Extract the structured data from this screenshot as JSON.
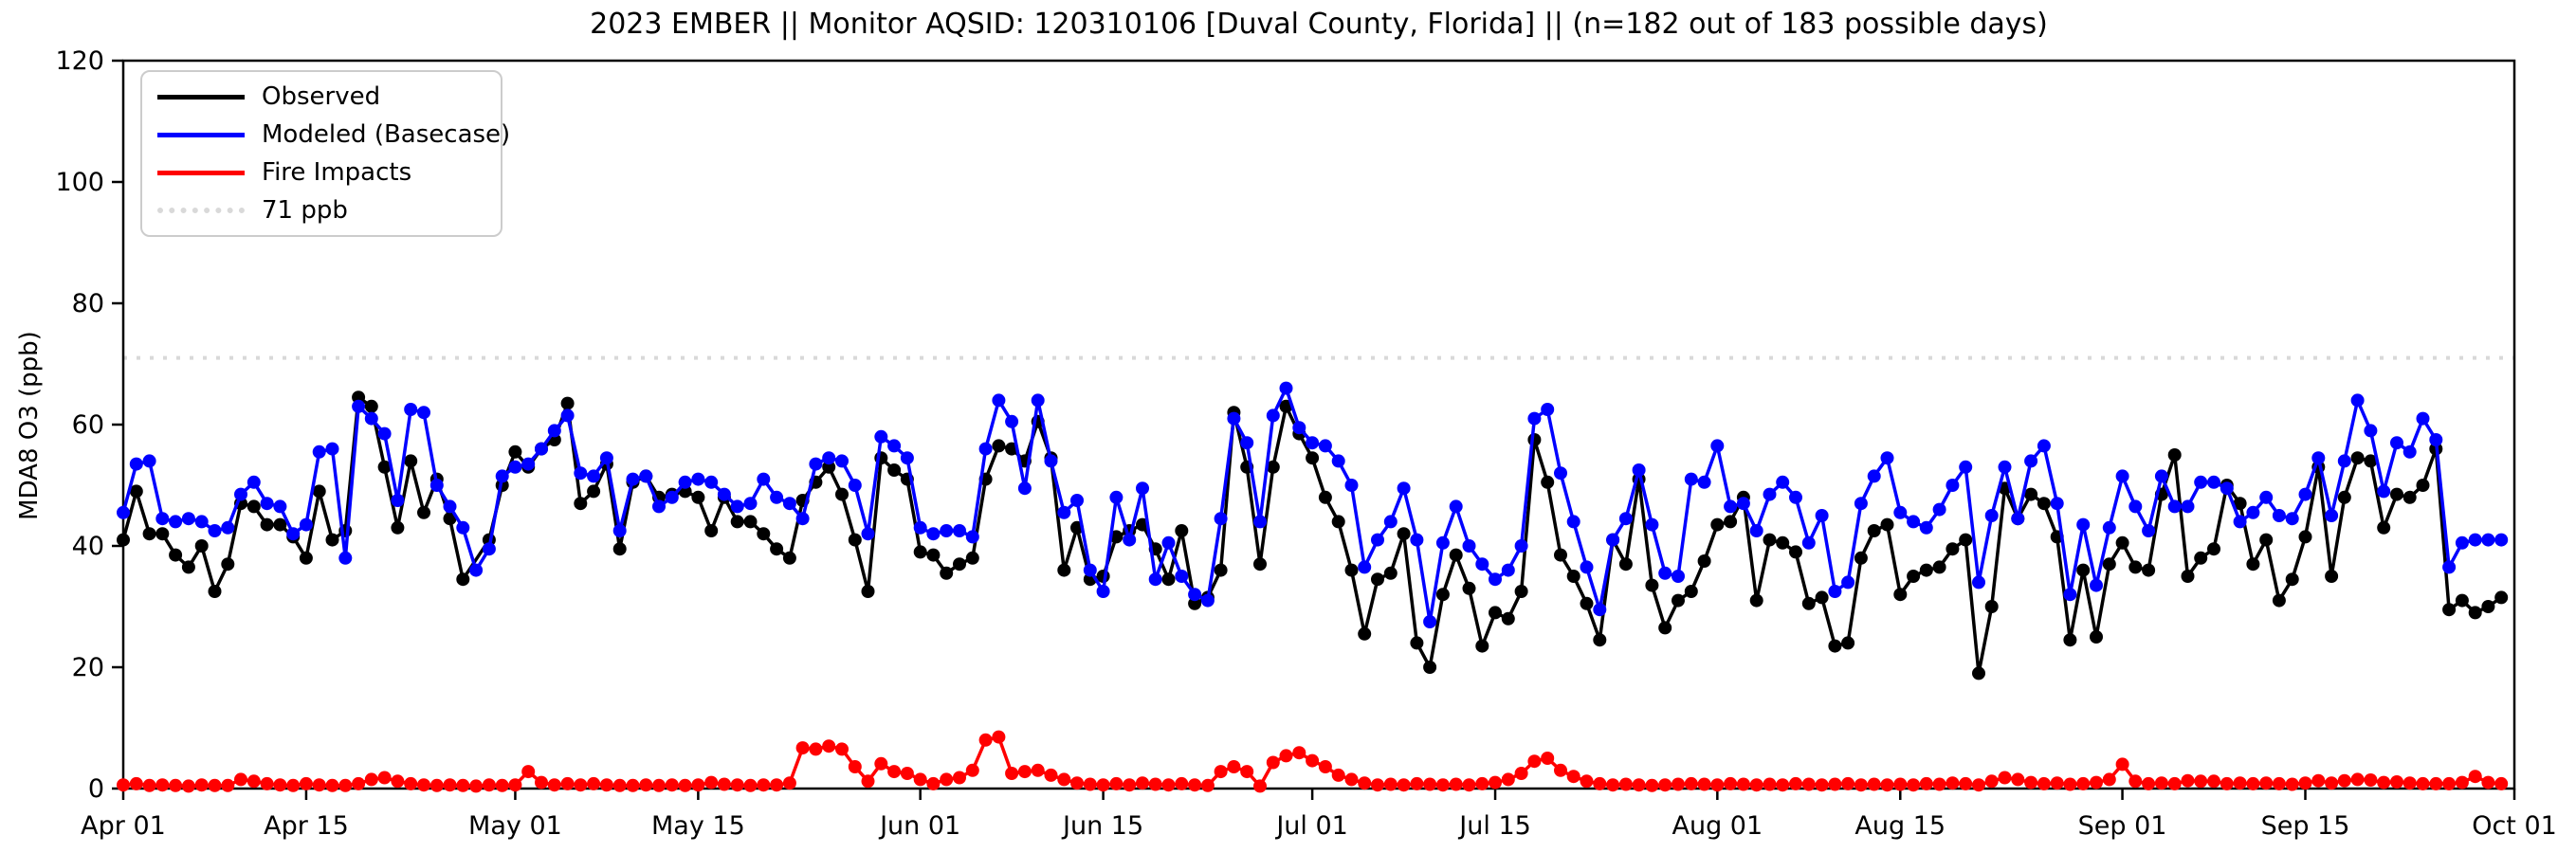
{
  "chart_data": {
    "type": "line",
    "title": "2023 EMBER || Monitor AQSID: 120310106 [Duval County, Florida] || (n=182 out of 183 possible days)",
    "ylabel": "MDA8 O3 (ppb)",
    "xlabel": "",
    "ylim": [
      0,
      120
    ],
    "yticks": [
      0,
      20,
      40,
      60,
      80,
      100,
      120
    ],
    "x_axis_days_total": 183,
    "xticks": [
      {
        "label": "Apr 01",
        "day": 0
      },
      {
        "label": "Apr 15",
        "day": 14
      },
      {
        "label": "May 01",
        "day": 30
      },
      {
        "label": "May 15",
        "day": 44
      },
      {
        "label": "Jun 01",
        "day": 61
      },
      {
        "label": "Jun 15",
        "day": 75
      },
      {
        "label": "Jul 01",
        "day": 91
      },
      {
        "label": "Jul 15",
        "day": 105
      },
      {
        "label": "Aug 01",
        "day": 122
      },
      {
        "label": "Aug 15",
        "day": 136
      },
      {
        "label": "Sep 01",
        "day": 153
      },
      {
        "label": "Sep 15",
        "day": 167
      },
      {
        "label": "Oct 01",
        "day": 183
      }
    ],
    "threshold": {
      "value": 71,
      "label": "71 ppb",
      "color": "#d9d9d9"
    },
    "legend": [
      {
        "label": "Observed",
        "color": "#000000",
        "style": "solid"
      },
      {
        "label": "Modeled (Basecase)",
        "color": "#0000ff",
        "style": "solid"
      },
      {
        "label": "Fire Impacts",
        "color": "#ff0000",
        "style": "solid"
      },
      {
        "label": "71 ppb",
        "color": "#d9d9d9",
        "style": "dotted"
      }
    ],
    "series": [
      {
        "name": "Observed",
        "color": "#000000",
        "values": [
          41,
          49,
          42,
          42,
          38.5,
          36.5,
          40,
          32.5,
          37,
          47,
          46.5,
          43.5,
          43.5,
          41.5,
          38,
          49,
          41,
          42.5,
          64.5,
          63,
          53,
          43,
          54,
          45.5,
          51,
          44.5,
          34.5,
          null,
          41,
          50,
          55.5,
          53,
          56,
          57.5,
          63.5,
          47,
          49,
          53.5,
          39.5,
          50.5,
          51.5,
          48,
          48.5,
          49,
          48,
          42.5,
          48,
          44,
          44,
          42,
          39.5,
          38,
          47.5,
          50.5,
          53,
          48.5,
          41,
          32.5,
          54.5,
          52.5,
          51,
          39,
          38.5,
          35.5,
          37,
          38,
          51,
          56.5,
          56,
          54,
          60.5,
          54.5,
          36,
          43,
          34.5,
          35,
          41.5,
          42.5,
          43.5,
          39.5,
          34.5,
          42.5,
          30.5,
          31.5,
          36,
          62,
          53,
          37,
          53,
          63,
          58.5,
          54.5,
          48,
          44,
          36,
          25.5,
          34.5,
          35.5,
          42,
          24,
          20,
          32,
          38.5,
          33,
          23.5,
          29,
          28,
          32.5,
          57.5,
          50.5,
          38.5,
          35,
          30.5,
          24.5,
          41,
          37,
          51,
          33.5,
          26.5,
          31,
          32.5,
          37.5,
          43.5,
          44,
          48,
          31,
          41,
          40.5,
          39,
          30.5,
          31.5,
          23.5,
          24,
          38,
          42.5,
          43.5,
          32,
          35,
          36,
          36.5,
          39.5,
          41,
          19,
          30,
          49.5,
          44.5,
          48.5,
          47,
          41.5,
          24.5,
          36,
          25,
          37,
          40.5,
          36.5,
          36,
          48.5,
          55,
          35,
          38,
          39.5,
          50,
          47,
          37,
          41,
          31,
          34.5,
          41.5,
          53,
          35,
          48,
          54.5,
          54,
          43,
          48.5,
          48,
          50,
          56,
          29.5,
          31,
          29,
          30,
          31.5
        ]
      },
      {
        "name": "Modeled (Basecase)",
        "color": "#0000ff",
        "values": [
          45.5,
          53.5,
          54,
          44.5,
          44,
          44.5,
          44,
          42.5,
          43,
          48.5,
          50.5,
          47,
          46.5,
          42,
          43.5,
          55.5,
          56,
          38,
          63,
          61,
          58.5,
          47.5,
          62.5,
          62,
          50,
          46.5,
          43,
          36,
          39.5,
          51.5,
          53,
          53.5,
          56,
          59,
          61.5,
          52,
          51.5,
          54.5,
          42.5,
          51,
          51.5,
          46.5,
          48,
          50.5,
          51,
          50.5,
          48.5,
          46.5,
          47,
          51,
          48,
          47,
          44.5,
          53.5,
          54.5,
          54,
          50,
          42,
          58,
          56.5,
          54.5,
          43,
          42,
          42.5,
          42.5,
          41.5,
          56,
          64,
          60.5,
          49.5,
          64,
          54,
          45.5,
          47.5,
          36,
          32.5,
          48,
          41,
          49.5,
          34.5,
          40.5,
          35,
          32,
          31,
          44.5,
          61,
          57,
          44,
          61.5,
          66,
          59.5,
          57,
          56.5,
          54,
          50,
          36.5,
          41,
          44,
          49.5,
          41,
          27.5,
          40.5,
          46.5,
          40,
          37,
          34.5,
          36,
          40,
          61,
          62.5,
          52,
          44,
          36.5,
          29.5,
          41,
          44.5,
          52.5,
          43.5,
          35.5,
          35,
          51,
          50.5,
          56.5,
          46.5,
          47,
          42.5,
          48.5,
          50.5,
          48,
          40.5,
          45,
          32.5,
          34,
          47,
          51.5,
          54.5,
          45.5,
          44,
          43,
          46,
          50,
          53,
          34,
          45,
          53,
          44.5,
          54,
          56.5,
          47,
          32,
          43.5,
          33.5,
          43,
          51.5,
          46.5,
          42.5,
          51.5,
          46.5,
          46.5,
          50.5,
          50.5,
          49.5,
          44,
          45.5,
          48,
          45,
          44.5,
          48.5,
          54.5,
          45,
          54,
          64,
          59,
          49,
          57,
          55.5,
          61,
          57.5,
          36.5,
          40.5,
          41,
          41,
          41
        ]
      },
      {
        "name": "Fire Impacts",
        "color": "#ff0000",
        "values": [
          0.6,
          0.8,
          0.5,
          0.6,
          0.5,
          0.4,
          0.6,
          0.5,
          0.5,
          1.5,
          1.2,
          0.8,
          0.6,
          0.5,
          0.8,
          0.6,
          0.5,
          0.5,
          0.8,
          1.5,
          1.8,
          1.2,
          0.8,
          0.6,
          0.5,
          0.6,
          0.5,
          0.4,
          0.6,
          0.5,
          0.6,
          2.8,
          1.0,
          0.6,
          0.8,
          0.6,
          0.8,
          0.6,
          0.5,
          0.5,
          0.6,
          0.5,
          0.6,
          0.5,
          0.6,
          1.0,
          0.7,
          0.6,
          0.5,
          0.6,
          0.6,
          0.9,
          6.7,
          6.5,
          7.0,
          6.5,
          3.6,
          1.2,
          4.1,
          2.8,
          2.5,
          1.5,
          0.8,
          1.5,
          1.8,
          3.0,
          8.0,
          8.5,
          2.5,
          2.8,
          3.0,
          2.2,
          1.5,
          0.9,
          0.7,
          0.6,
          0.8,
          0.6,
          0.9,
          0.7,
          0.6,
          0.8,
          0.6,
          0.5,
          2.8,
          3.6,
          2.8,
          0.4,
          4.3,
          5.4,
          5.9,
          4.6,
          3.6,
          2.2,
          1.5,
          0.9,
          0.6,
          0.7,
          0.6,
          0.8,
          0.7,
          0.6,
          0.7,
          0.6,
          0.8,
          1.0,
          1.5,
          2.5,
          4.5,
          5.0,
          3.0,
          2.0,
          1.2,
          0.8,
          0.6,
          0.7,
          0.6,
          0.5,
          0.6,
          0.7,
          0.8,
          0.7,
          0.6,
          0.8,
          0.7,
          0.6,
          0.7,
          0.6,
          0.8,
          0.7,
          0.6,
          0.7,
          0.8,
          0.6,
          0.7,
          0.6,
          0.7,
          0.6,
          0.8,
          0.7,
          0.9,
          0.8,
          0.6,
          1.2,
          1.8,
          1.5,
          1.0,
          0.8,
          0.9,
          0.7,
          0.8,
          1.0,
          1.5,
          4.0,
          1.2,
          0.8,
          0.9,
          0.8,
          1.3,
          1.2,
          1.2,
          0.8,
          0.9,
          0.8,
          0.9,
          0.8,
          0.7,
          0.9,
          1.3,
          0.9,
          1.3,
          1.5,
          1.4,
          1.0,
          1.1,
          0.9,
          0.8,
          0.8,
          0.8,
          1.0,
          2.0,
          1.0,
          0.8
        ]
      }
    ],
    "layout": {
      "plot_left": 130,
      "plot_right": 2652,
      "plot_top": 64,
      "plot_bottom": 832,
      "grid": false,
      "legend_position": "upper-left",
      "line_width": 3.5,
      "marker_radius": 7,
      "axis_color": "#000000",
      "background": "#ffffff"
    }
  }
}
